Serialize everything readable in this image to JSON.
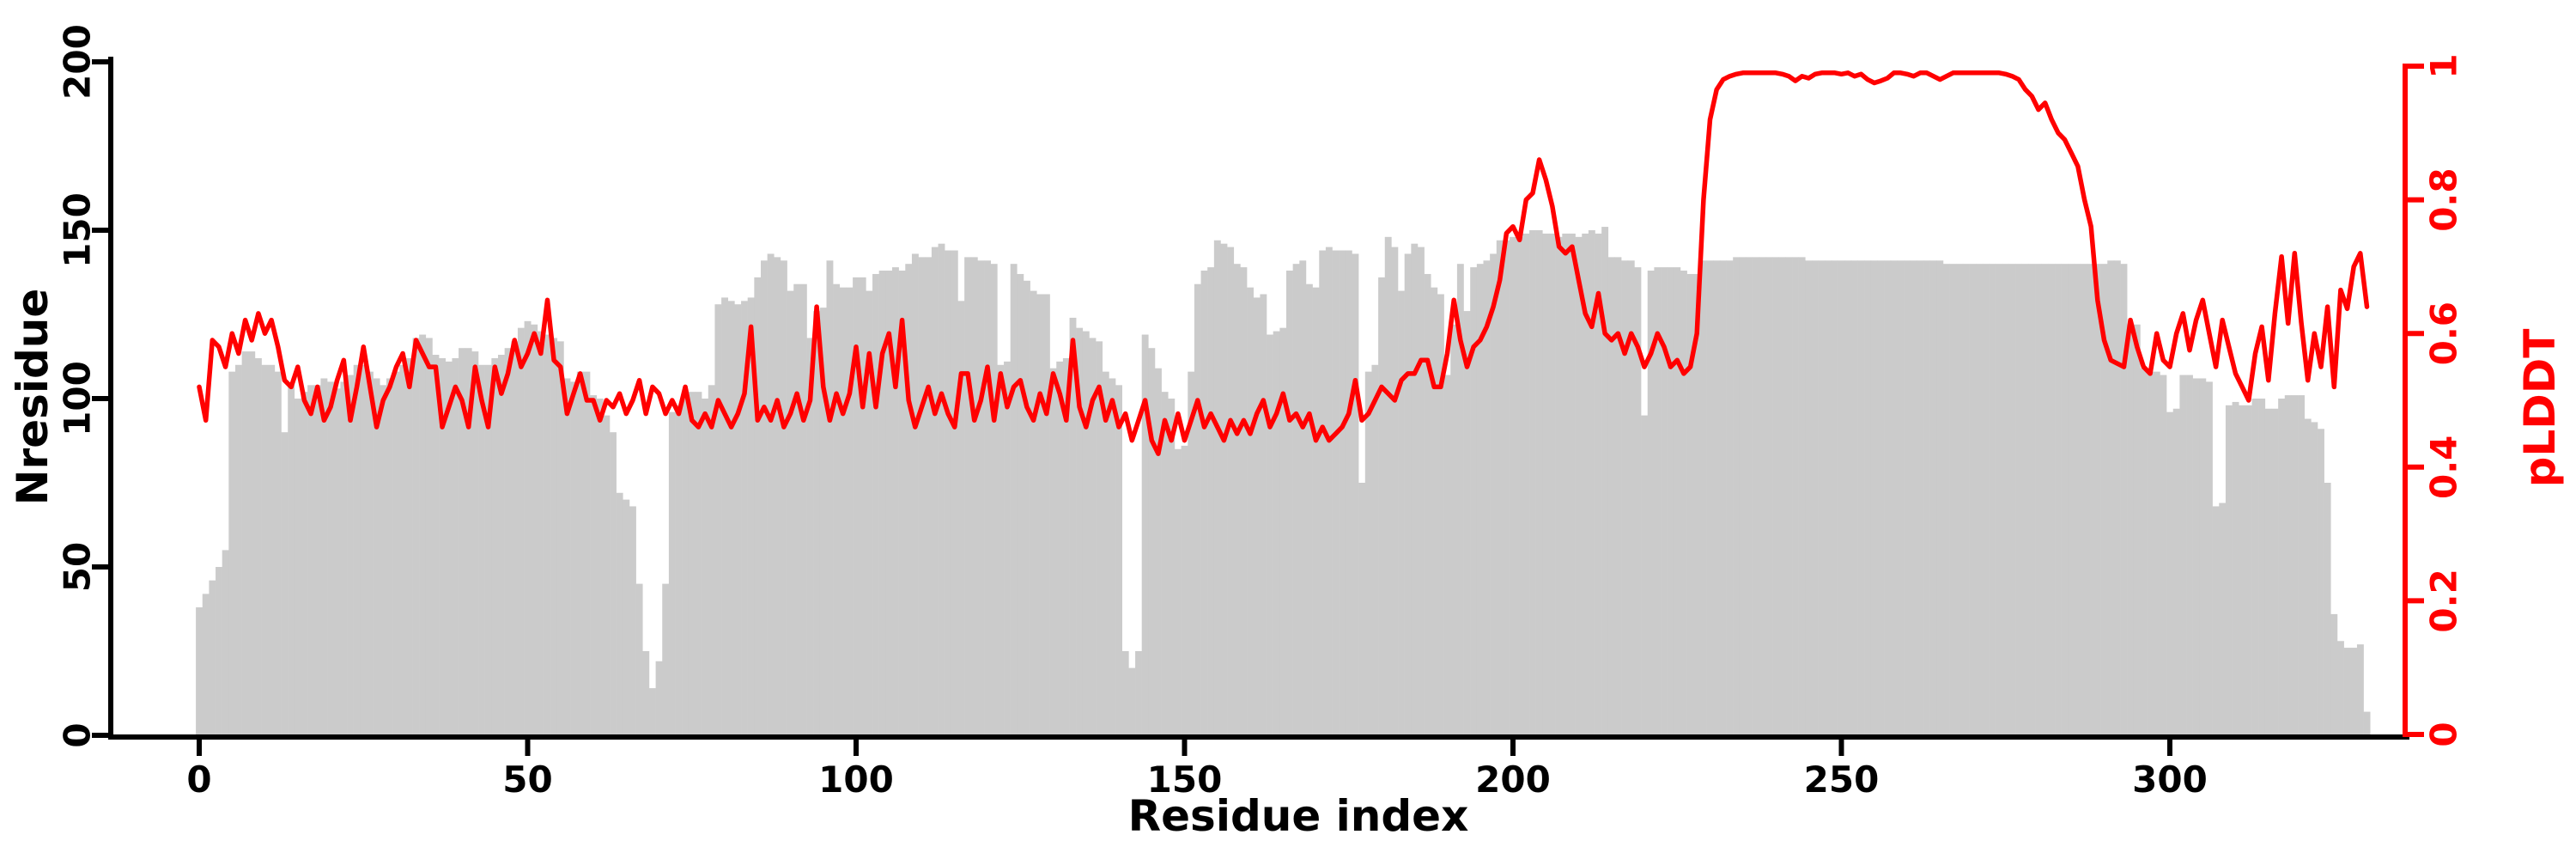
{
  "chart_data": {
    "type": "bar",
    "subtype": "bar_plus_line_dual_axis",
    "title": "",
    "x_first": 0,
    "x_step": 1,
    "x_count": 331,
    "x_axis": {
      "label": "Residue index",
      "ticks": [
        0,
        50,
        100,
        150,
        200,
        250,
        300
      ],
      "tick_labels": [
        "0",
        "50",
        "100",
        "150",
        "200",
        "250",
        "300"
      ],
      "range": [
        0,
        335
      ],
      "color": "#000000",
      "grid": false
    },
    "left_axis": {
      "label": "Nresidue",
      "ticks": [
        0,
        50,
        100,
        150,
        200
      ],
      "tick_labels": [
        "0",
        "50",
        "100",
        "150",
        "200"
      ],
      "range": [
        0,
        200
      ],
      "color": "#000000"
    },
    "right_axis": {
      "label": "pLDDT",
      "ticks": [
        0,
        0.2,
        0.4,
        0.6,
        0.8,
        1
      ],
      "tick_labels": [
        "0",
        "0.2",
        "0.4",
        "0.6",
        "0.8",
        "1"
      ],
      "range": [
        0,
        1
      ],
      "color": "#ff0000"
    },
    "legend": "none",
    "series": [
      {
        "name": "Nresidue",
        "render": "bar",
        "axis": "left",
        "color": "#cbcbcb",
        "values": [
          38,
          42,
          46,
          50,
          55,
          108,
          110,
          114,
          114,
          112,
          110,
          110,
          108,
          90,
          104,
          100,
          102,
          104,
          104,
          106,
          105,
          103,
          105,
          107,
          110,
          110,
          108,
          106,
          104,
          106,
          108,
          110,
          112,
          118,
          119,
          118,
          113,
          112,
          111,
          112,
          115,
          115,
          114,
          110,
          110,
          112,
          113,
          115,
          117,
          121,
          123,
          122,
          120,
          119,
          118,
          117,
          106,
          105,
          108,
          108,
          101,
          100,
          95,
          90,
          72,
          70,
          68,
          45,
          25,
          14,
          22,
          45,
          96,
          98,
          100,
          102,
          102,
          100,
          104,
          128,
          130,
          129,
          128,
          129,
          130,
          136,
          141,
          143,
          142,
          141,
          132,
          134,
          134,
          118,
          126,
          127,
          141,
          134,
          133,
          133,
          136,
          136,
          132,
          137,
          138,
          138,
          139,
          138,
          140,
          143,
          142,
          142,
          145,
          146,
          144,
          144,
          129,
          142,
          142,
          141,
          141,
          140,
          110,
          111,
          140,
          137,
          135,
          132,
          131,
          131,
          109,
          111,
          112,
          124,
          121,
          120,
          118,
          117,
          108,
          106,
          104,
          25,
          20,
          25,
          119,
          115,
          109,
          102,
          100,
          85,
          86,
          108,
          134,
          138,
          139,
          147,
          146,
          145,
          140,
          139,
          133,
          130,
          131,
          119,
          120,
          121,
          138,
          140,
          141,
          134,
          133,
          144,
          145,
          144,
          144,
          144,
          143,
          75,
          108,
          110,
          136,
          148,
          145,
          132,
          143,
          146,
          145,
          137,
          133,
          131,
          107,
          122,
          140,
          126,
          139,
          140,
          141,
          143,
          147,
          147,
          148,
          148,
          149,
          150,
          150,
          149,
          149,
          148,
          149,
          149,
          148,
          149,
          150,
          149,
          151,
          142,
          142,
          141,
          141,
          139,
          95,
          138,
          139,
          139,
          139,
          139,
          138,
          137,
          137,
          141,
          141,
          141,
          141,
          141,
          142,
          142,
          142,
          142,
          142,
          142,
          142,
          142,
          142,
          142,
          142,
          141,
          141,
          141,
          141,
          141,
          141,
          141,
          141,
          141,
          141,
          141,
          141,
          141,
          141,
          141,
          141,
          141,
          141,
          141,
          141,
          141,
          140,
          140,
          140,
          140,
          140,
          140,
          140,
          140,
          140,
          140,
          140,
          140,
          140,
          140,
          140,
          140,
          140,
          140,
          140,
          140,
          140,
          140,
          140,
          140,
          140,
          141,
          141,
          140,
          122,
          122,
          109,
          108,
          108,
          107,
          96,
          97,
          107,
          107,
          106,
          106,
          105,
          68,
          69,
          98,
          99,
          98,
          98,
          100,
          100,
          97,
          97,
          100,
          101,
          101,
          101,
          94,
          93,
          91,
          75,
          36,
          28,
          26,
          26,
          27,
          7
        ]
      },
      {
        "name": "pLDDT",
        "render": "line",
        "axis": "right",
        "color": "#ff0000",
        "values": [
          0.52,
          0.47,
          0.59,
          0.58,
          0.55,
          0.6,
          0.57,
          0.62,
          0.59,
          0.63,
          0.6,
          0.62,
          0.58,
          0.53,
          0.52,
          0.55,
          0.5,
          0.48,
          0.52,
          0.47,
          0.49,
          0.53,
          0.56,
          0.47,
          0.52,
          0.58,
          0.52,
          0.46,
          0.5,
          0.52,
          0.55,
          0.57,
          0.52,
          0.59,
          0.57,
          0.55,
          0.55,
          0.46,
          0.49,
          0.52,
          0.5,
          0.46,
          0.55,
          0.5,
          0.46,
          0.55,
          0.51,
          0.54,
          0.59,
          0.55,
          0.57,
          0.6,
          0.57,
          0.65,
          0.56,
          0.55,
          0.48,
          0.51,
          0.54,
          0.5,
          0.5,
          0.47,
          0.5,
          0.49,
          0.51,
          0.48,
          0.5,
          0.53,
          0.48,
          0.52,
          0.51,
          0.48,
          0.5,
          0.48,
          0.52,
          0.47,
          0.46,
          0.48,
          0.46,
          0.5,
          0.48,
          0.46,
          0.48,
          0.51,
          0.61,
          0.47,
          0.49,
          0.47,
          0.5,
          0.46,
          0.48,
          0.51,
          0.47,
          0.5,
          0.64,
          0.52,
          0.47,
          0.51,
          0.48,
          0.51,
          0.58,
          0.49,
          0.57,
          0.49,
          0.57,
          0.6,
          0.52,
          0.62,
          0.5,
          0.46,
          0.49,
          0.52,
          0.48,
          0.51,
          0.48,
          0.46,
          0.54,
          0.54,
          0.47,
          0.5,
          0.55,
          0.47,
          0.54,
          0.49,
          0.52,
          0.53,
          0.49,
          0.47,
          0.51,
          0.48,
          0.54,
          0.51,
          0.47,
          0.59,
          0.49,
          0.46,
          0.5,
          0.52,
          0.47,
          0.5,
          0.46,
          0.48,
          0.44,
          0.47,
          0.5,
          0.44,
          0.42,
          0.47,
          0.44,
          0.48,
          0.44,
          0.47,
          0.5,
          0.46,
          0.48,
          0.46,
          0.44,
          0.47,
          0.45,
          0.47,
          0.45,
          0.48,
          0.5,
          0.46,
          0.48,
          0.51,
          0.47,
          0.48,
          0.46,
          0.48,
          0.44,
          0.46,
          0.44,
          0.45,
          0.46,
          0.48,
          0.53,
          0.47,
          0.48,
          0.5,
          0.52,
          0.51,
          0.5,
          0.53,
          0.54,
          0.54,
          0.56,
          0.56,
          0.52,
          0.52,
          0.57,
          0.65,
          0.59,
          0.55,
          0.58,
          0.59,
          0.61,
          0.64,
          0.68,
          0.75,
          0.76,
          0.74,
          0.8,
          0.81,
          0.86,
          0.83,
          0.79,
          0.73,
          0.72,
          0.73,
          0.68,
          0.63,
          0.61,
          0.66,
          0.6,
          0.59,
          0.6,
          0.57,
          0.6,
          0.58,
          0.55,
          0.57,
          0.6,
          0.58,
          0.55,
          0.56,
          0.54,
          0.55,
          0.6,
          0.8,
          0.92,
          0.965,
          0.98,
          0.985,
          0.988,
          0.99,
          0.99,
          0.99,
          0.99,
          0.99,
          0.99,
          0.988,
          0.985,
          0.978,
          0.985,
          0.982,
          0.988,
          0.99,
          0.99,
          0.99,
          0.988,
          0.99,
          0.985,
          0.988,
          0.98,
          0.975,
          0.978,
          0.982,
          0.99,
          0.99,
          0.988,
          0.985,
          0.99,
          0.99,
          0.985,
          0.98,
          0.985,
          0.99,
          0.99,
          0.99,
          0.99,
          0.99,
          0.99,
          0.99,
          0.99,
          0.988,
          0.985,
          0.98,
          0.965,
          0.955,
          0.935,
          0.945,
          0.92,
          0.9,
          0.89,
          0.87,
          0.85,
          0.8,
          0.76,
          0.65,
          0.59,
          0.56,
          0.555,
          0.55,
          0.62,
          0.58,
          0.55,
          0.54,
          0.6,
          0.56,
          0.55,
          0.6,
          0.63,
          0.575,
          0.62,
          0.65,
          0.6,
          0.55,
          0.62,
          0.58,
          0.54,
          0.52,
          0.5,
          0.57,
          0.61,
          0.53,
          0.63,
          0.715,
          0.615,
          0.72,
          0.617,
          0.53,
          0.6,
          0.55,
          0.64,
          0.52,
          0.665,
          0.637,
          0.7,
          0.72,
          0.64
        ]
      }
    ]
  }
}
